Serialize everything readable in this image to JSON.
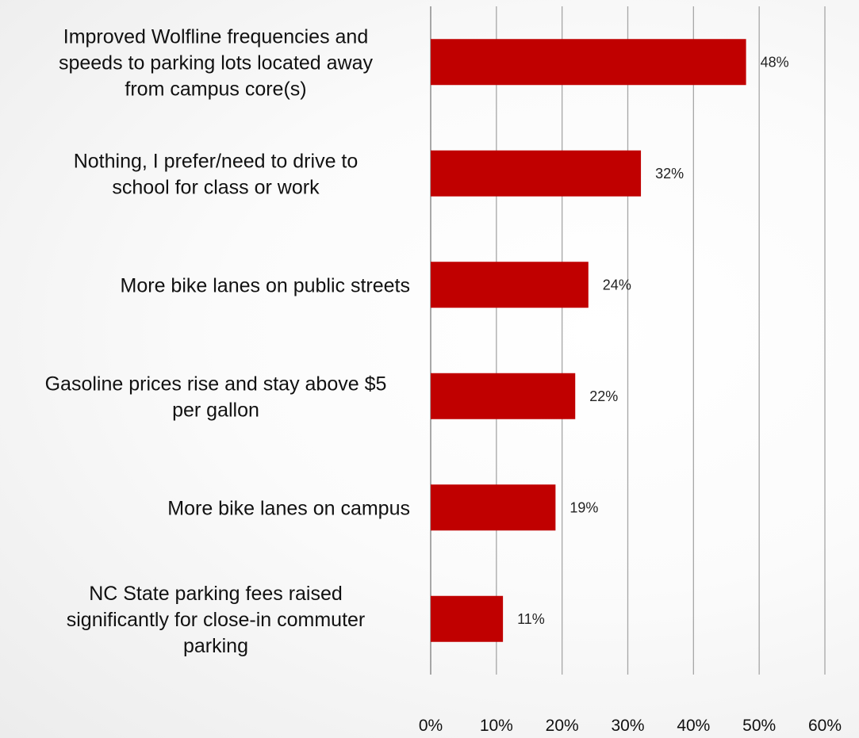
{
  "chart_data": {
    "type": "bar",
    "orientation": "horizontal",
    "categories": [
      [
        "Improved Wolfline frequencies and",
        "speeds to parking lots located away",
        "from campus core(s)"
      ],
      [
        "Nothing, I prefer/need to drive to",
        "school for class or work"
      ],
      [
        "More bike lanes on public streets"
      ],
      [
        "Gasoline prices rise and stay above $5",
        "per gallon"
      ],
      [
        "More bike lanes on campus"
      ],
      [
        "NC State parking fees raised",
        "significantly for close-in commuter",
        "parking"
      ]
    ],
    "values": [
      48,
      32,
      24,
      22,
      19,
      11
    ],
    "value_labels": [
      "48%",
      "32%",
      "24%",
      "22%",
      "19%",
      "11%"
    ],
    "xlim": [
      0,
      60
    ],
    "x_ticks": [
      "0%",
      "10%",
      "20%",
      "30%",
      "40%",
      "50%",
      "60%"
    ],
    "grid": true,
    "bar_color": "#c00000",
    "title": "",
    "xlabel": "",
    "ylabel": ""
  }
}
